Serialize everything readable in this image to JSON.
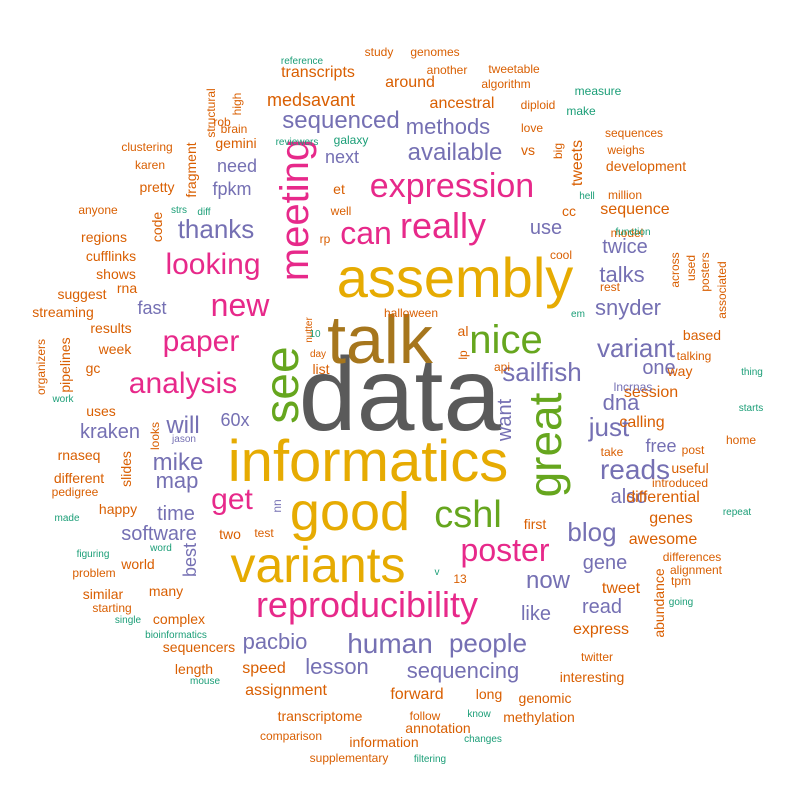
{
  "palette": {
    "gray": "#5a5a5a",
    "brown": "#a6761d",
    "gold": "#e6ab02",
    "magenta": "#e7298a",
    "purple": "#7570b3",
    "green": "#66a61e",
    "orange": "#d95f02",
    "teal": "#1b9e77"
  },
  "words": [
    {
      "text": "data",
      "c": "gray"
    },
    {
      "text": "talk",
      "c": "brown"
    },
    {
      "text": "assembly",
      "c": "gold"
    },
    {
      "text": "informatics",
      "c": "gold"
    },
    {
      "text": "variants",
      "c": "gold"
    },
    {
      "text": "good",
      "c": "gold"
    },
    {
      "text": "great",
      "c": "green"
    },
    {
      "text": "see",
      "c": "green"
    },
    {
      "text": "meeting",
      "c": "magenta"
    },
    {
      "text": "really",
      "c": "magenta"
    },
    {
      "text": "expression",
      "c": "magenta"
    },
    {
      "text": "can",
      "c": "magenta"
    },
    {
      "text": "nice",
      "c": "green"
    },
    {
      "text": "cshl",
      "c": "green"
    },
    {
      "text": "reproducibility",
      "c": "magenta"
    },
    {
      "text": "poster",
      "c": "magenta"
    },
    {
      "text": "new",
      "c": "magenta"
    },
    {
      "text": "paper",
      "c": "magenta"
    },
    {
      "text": "analysis",
      "c": "magenta"
    },
    {
      "text": "looking",
      "c": "magenta"
    },
    {
      "text": "get",
      "c": "magenta"
    },
    {
      "text": "thanks",
      "c": "purple"
    },
    {
      "text": "human",
      "c": "purple"
    },
    {
      "text": "people",
      "c": "purple"
    },
    {
      "text": "sailfish",
      "c": "purple"
    },
    {
      "text": "variant",
      "c": "purple"
    },
    {
      "text": "available",
      "c": "purple"
    },
    {
      "text": "methods",
      "c": "purple"
    },
    {
      "text": "sequenced",
      "c": "purple"
    },
    {
      "text": "will",
      "c": "purple"
    },
    {
      "text": "just",
      "c": "purple"
    },
    {
      "text": "reads",
      "c": "purple"
    },
    {
      "text": "blog",
      "c": "purple"
    },
    {
      "text": "now",
      "c": "purple"
    },
    {
      "text": "pacbio",
      "c": "purple"
    },
    {
      "text": "lesson",
      "c": "purple"
    },
    {
      "text": "sequencing",
      "c": "purple"
    },
    {
      "text": "mike",
      "c": "purple"
    },
    {
      "text": "kraken",
      "c": "purple"
    },
    {
      "text": "map",
      "c": "purple"
    },
    {
      "text": "time",
      "c": "purple"
    },
    {
      "text": "software",
      "c": "purple"
    },
    {
      "text": "snyder",
      "c": "purple"
    },
    {
      "text": "talks",
      "c": "purple"
    },
    {
      "text": "twice",
      "c": "purple"
    },
    {
      "text": "use",
      "c": "purple"
    },
    {
      "text": "dna",
      "c": "purple"
    },
    {
      "text": "one",
      "c": "purple"
    },
    {
      "text": "want",
      "c": "purple"
    },
    {
      "text": "also",
      "c": "purple"
    },
    {
      "text": "gene",
      "c": "purple"
    },
    {
      "text": "free",
      "c": "purple"
    },
    {
      "text": "fast",
      "c": "purple"
    },
    {
      "text": "60x",
      "c": "purple"
    },
    {
      "text": "need",
      "c": "purple"
    },
    {
      "text": "fpkm",
      "c": "purple"
    },
    {
      "text": "next",
      "c": "purple"
    },
    {
      "text": "best",
      "c": "purple"
    },
    {
      "text": "like",
      "c": "purple"
    },
    {
      "text": "read",
      "c": "purple"
    },
    {
      "text": "medsavant",
      "c": "orange"
    },
    {
      "text": "ancestral",
      "c": "orange"
    },
    {
      "text": "around",
      "c": "orange"
    },
    {
      "text": "transcripts",
      "c": "orange"
    },
    {
      "text": "tweets",
      "c": "orange"
    },
    {
      "text": "sequence",
      "c": "orange"
    },
    {
      "text": "cc",
      "c": "orange"
    },
    {
      "text": "et",
      "c": "orange"
    },
    {
      "text": "vs",
      "c": "orange"
    },
    {
      "text": "calling",
      "c": "orange"
    },
    {
      "text": "session",
      "c": "orange"
    },
    {
      "text": "differential",
      "c": "orange"
    },
    {
      "text": "genes",
      "c": "orange"
    },
    {
      "text": "awesome",
      "c": "orange"
    },
    {
      "text": "tweet",
      "c": "orange"
    },
    {
      "text": "express",
      "c": "orange"
    },
    {
      "text": "assignment",
      "c": "orange"
    },
    {
      "text": "speed",
      "c": "orange"
    },
    {
      "text": "forward",
      "c": "orange"
    },
    {
      "text": "transcriptome",
      "c": "orange"
    },
    {
      "text": "annotation",
      "c": "orange"
    },
    {
      "text": "many",
      "c": "orange"
    },
    {
      "text": "two",
      "c": "orange"
    },
    {
      "text": "first",
      "c": "orange"
    },
    {
      "text": "fragment",
      "c": "orange"
    },
    {
      "text": "gemini",
      "c": "orange"
    },
    {
      "text": "slides",
      "c": "orange"
    },
    {
      "text": "happy",
      "c": "orange"
    },
    {
      "text": "world",
      "c": "orange"
    },
    {
      "text": "shows",
      "c": "orange"
    },
    {
      "text": "cufflinks",
      "c": "orange"
    },
    {
      "text": "results",
      "c": "orange"
    },
    {
      "text": "week",
      "c": "orange"
    },
    {
      "text": "uses",
      "c": "orange"
    },
    {
      "text": "suggest",
      "c": "orange"
    },
    {
      "text": "rna",
      "c": "orange"
    },
    {
      "text": "list",
      "c": "orange"
    },
    {
      "text": "al",
      "c": "orange"
    },
    {
      "text": "halloween",
      "c": "orange"
    },
    {
      "text": "development",
      "c": "orange"
    },
    {
      "text": "million",
      "c": "orange"
    },
    {
      "text": "way",
      "c": "orange"
    },
    {
      "text": "talking",
      "c": "orange"
    },
    {
      "text": "based",
      "c": "orange"
    },
    {
      "text": "useful",
      "c": "orange"
    },
    {
      "text": "take",
      "c": "orange"
    },
    {
      "text": "post",
      "c": "orange"
    },
    {
      "text": "home",
      "c": "orange"
    },
    {
      "text": "long",
      "c": "orange"
    },
    {
      "text": "genomic",
      "c": "orange"
    },
    {
      "text": "methylation",
      "c": "orange"
    },
    {
      "text": "follow",
      "c": "orange"
    },
    {
      "text": "information",
      "c": "orange"
    },
    {
      "text": "comparison",
      "c": "orange"
    },
    {
      "text": "supplementary",
      "c": "orange"
    },
    {
      "text": "sequencers",
      "c": "orange"
    },
    {
      "text": "complex",
      "c": "orange"
    },
    {
      "text": "length",
      "c": "orange"
    },
    {
      "text": "interesting",
      "c": "orange"
    },
    {
      "text": "twitter",
      "c": "orange"
    },
    {
      "text": "abundance",
      "c": "orange"
    },
    {
      "text": "code",
      "c": "orange"
    },
    {
      "text": "pretty",
      "c": "orange"
    },
    {
      "text": "regions",
      "c": "orange"
    },
    {
      "text": "anyone",
      "c": "orange"
    },
    {
      "text": "streaming",
      "c": "orange"
    },
    {
      "text": "pipelines",
      "c": "orange"
    },
    {
      "text": "gc",
      "c": "orange"
    },
    {
      "text": "rnaseq",
      "c": "orange"
    },
    {
      "text": "different",
      "c": "orange"
    },
    {
      "text": "pedigree",
      "c": "orange"
    },
    {
      "text": "problem",
      "c": "orange"
    },
    {
      "text": "similar",
      "c": "orange"
    },
    {
      "text": "starting",
      "c": "orange"
    },
    {
      "text": "organizers",
      "c": "orange"
    },
    {
      "text": "karen",
      "c": "orange"
    },
    {
      "text": "clustering",
      "c": "orange"
    },
    {
      "text": "brain",
      "c": "orange"
    },
    {
      "text": "high",
      "c": "orange"
    },
    {
      "text": "structural",
      "c": "orange"
    },
    {
      "text": "study",
      "c": "orange"
    },
    {
      "text": "genomes",
      "c": "orange"
    },
    {
      "text": "another",
      "c": "orange"
    },
    {
      "text": "algorithm",
      "c": "orange"
    },
    {
      "text": "tweetable",
      "c": "orange"
    },
    {
      "text": "diploid",
      "c": "orange"
    },
    {
      "text": "love",
      "c": "orange"
    },
    {
      "text": "big",
      "c": "orange"
    },
    {
      "text": "sequences",
      "c": "orange"
    },
    {
      "text": "weighs",
      "c": "orange"
    },
    {
      "text": "model",
      "c": "orange"
    },
    {
      "text": "across",
      "c": "orange"
    },
    {
      "text": "used",
      "c": "orange"
    },
    {
      "text": "posters",
      "c": "orange"
    },
    {
      "text": "associated",
      "c": "orange"
    },
    {
      "text": "rest",
      "c": "orange"
    },
    {
      "text": "introduced",
      "c": "orange"
    },
    {
      "text": "tpm",
      "c": "orange"
    },
    {
      "text": "differences",
      "c": "orange"
    },
    {
      "text": "alignment",
      "c": "orange"
    },
    {
      "text": "looks",
      "c": "orange"
    },
    {
      "text": "jason",
      "c": "purple"
    },
    {
      "text": "well",
      "c": "orange"
    },
    {
      "text": "rp",
      "c": "orange"
    },
    {
      "text": "nutter",
      "c": "orange"
    },
    {
      "text": "day",
      "c": "orange"
    },
    {
      "text": "lp",
      "c": "orange"
    },
    {
      "text": "api",
      "c": "orange"
    },
    {
      "text": "lncrnas",
      "c": "purple"
    },
    {
      "text": "13",
      "c": "orange"
    },
    {
      "text": "rob",
      "c": "orange"
    },
    {
      "text": "cool",
      "c": "orange"
    },
    {
      "text": "test",
      "c": "orange"
    },
    {
      "text": "nn",
      "c": "purple"
    },
    {
      "text": "reference",
      "c": "teal"
    },
    {
      "text": "reviewers",
      "c": "teal"
    },
    {
      "text": "galaxy",
      "c": "teal"
    },
    {
      "text": "measure",
      "c": "teal"
    },
    {
      "text": "make",
      "c": "teal"
    },
    {
      "text": "strs",
      "c": "teal"
    },
    {
      "text": "diff",
      "c": "teal"
    },
    {
      "text": "hell",
      "c": "teal"
    },
    {
      "text": "function",
      "c": "teal"
    },
    {
      "text": "em",
      "c": "teal"
    },
    {
      "text": "thing",
      "c": "teal"
    },
    {
      "text": "starts",
      "c": "teal"
    },
    {
      "text": "repeat",
      "c": "teal"
    },
    {
      "text": "going",
      "c": "teal"
    },
    {
      "text": "changes",
      "c": "teal"
    },
    {
      "text": "filtering",
      "c": "teal"
    },
    {
      "text": "know",
      "c": "teal"
    },
    {
      "text": "mouse",
      "c": "teal"
    },
    {
      "text": "bioinformatics",
      "c": "teal"
    },
    {
      "text": "single",
      "c": "teal"
    },
    {
      "text": "figuring",
      "c": "teal"
    },
    {
      "text": "made",
      "c": "teal"
    },
    {
      "text": "word",
      "c": "teal"
    },
    {
      "text": "work",
      "c": "teal"
    },
    {
      "text": "10",
      "c": "teal"
    },
    {
      "text": "v",
      "c": "teal"
    }
  ]
}
